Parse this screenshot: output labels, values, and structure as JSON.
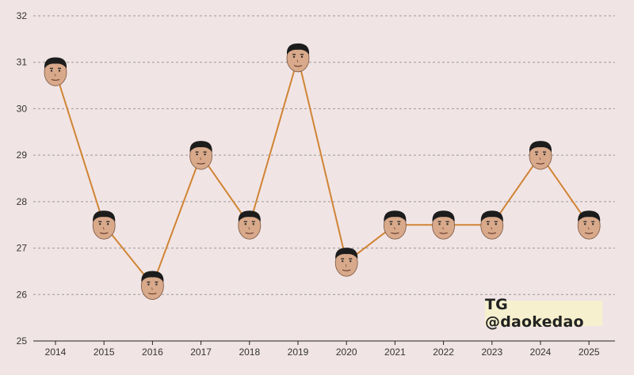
{
  "chart_data": {
    "type": "line",
    "x": [
      2014,
      2015,
      2016,
      2017,
      2018,
      2019,
      2020,
      2021,
      2022,
      2023,
      2024,
      2025
    ],
    "series": [
      {
        "values": [
          30.8,
          27.5,
          26.2,
          29.0,
          27.5,
          31.1,
          26.7,
          27.5,
          27.5,
          27.5,
          29.0,
          27.5
        ]
      }
    ],
    "xtick_labels": [
      "2014",
      "2015",
      "2016",
      "2017",
      "2018",
      "2019",
      "2020",
      "2021",
      "2022",
      "2023",
      "2024",
      "2025"
    ],
    "ytick_labels": [
      "25",
      "26",
      "27",
      "28",
      "29",
      "30",
      "31",
      "32"
    ],
    "ylim": [
      25,
      32
    ],
    "grid": "horizontal dashed",
    "marker": "face-icon",
    "colors": {
      "line": "#d08434",
      "background": "#f1e4e4",
      "grid": "#9a9a9a",
      "axis": "#222222"
    }
  },
  "watermark": {
    "text": "TG @daokedao"
  }
}
